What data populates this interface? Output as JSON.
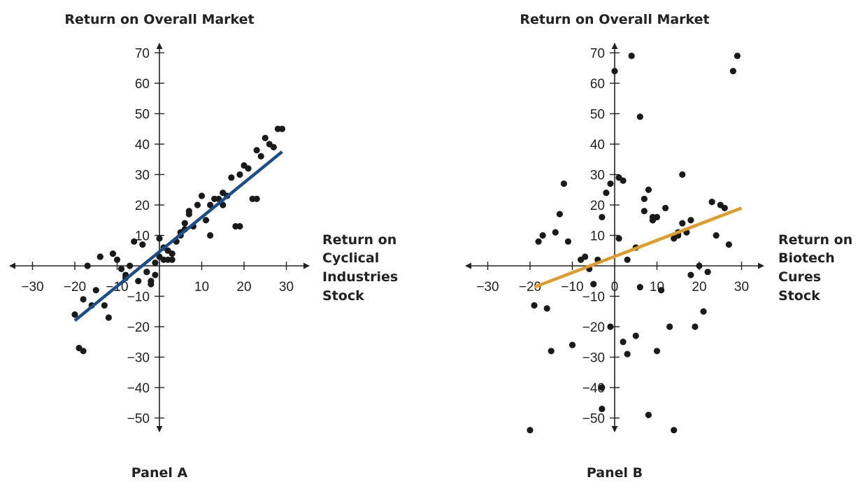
{
  "chart_data": [
    {
      "type": "scatter",
      "panel_label": "Panel A",
      "title": "Return on Overall Market",
      "xlabel": [
        "Return on",
        "Cyclical",
        "Industries",
        "Stock"
      ],
      "ylabel": "",
      "xlim": [
        -30,
        30
      ],
      "ylim": [
        -50,
        70
      ],
      "x_ticks": [
        -30,
        -20,
        -10,
        10,
        20,
        30
      ],
      "y_ticks": [
        -50,
        -40,
        -30,
        -20,
        -10,
        10,
        20,
        30,
        40,
        50,
        60,
        70
      ],
      "x_tick_labels": [
        "−30",
        "−20",
        "−10",
        "10",
        "20",
        "30"
      ],
      "y_tick_labels": [
        "−50",
        "−40",
        "−30",
        "−20",
        "−10",
        "10",
        "20",
        "30",
        "40",
        "50",
        "60",
        "70"
      ],
      "grid": false,
      "fit_line": {
        "color": "#1b4f8a",
        "x": [
          -20,
          29
        ],
        "y": [
          -18,
          37.5
        ]
      },
      "points": {
        "x": [
          -20,
          -19,
          -18,
          -17,
          -16,
          -15,
          -14,
          -13,
          -12,
          -11,
          -10,
          -9,
          -8,
          -7,
          -6,
          -5,
          -4,
          -3,
          -2,
          -1,
          0,
          1,
          2,
          3,
          4,
          5,
          6,
          7,
          8,
          9,
          10,
          11,
          12,
          13,
          14,
          15,
          16,
          17,
          18,
          19,
          20,
          21,
          22,
          23,
          24,
          25,
          26,
          27,
          28,
          29,
          -18,
          -14,
          -8,
          -3,
          -2,
          -1,
          0,
          1,
          2,
          3,
          5,
          6,
          7,
          12,
          15,
          19,
          23
        ],
        "y": [
          -16,
          -27,
          -11,
          0,
          -13,
          -8,
          3,
          -13,
          -17,
          4,
          2,
          -1,
          -4,
          0,
          8,
          -5,
          7,
          -2,
          -5,
          1,
          9,
          2,
          5,
          2,
          8,
          11,
          14,
          18,
          13,
          20,
          23,
          15,
          20,
          22,
          22,
          24,
          23,
          29,
          13,
          30,
          33,
          32,
          22,
          38,
          36,
          42,
          40,
          39,
          45,
          45,
          -28,
          3,
          -3,
          -2,
          -6,
          -3,
          3,
          6,
          2,
          4,
          10,
          12,
          17,
          10,
          20,
          13,
          22
        ]
      }
    },
    {
      "type": "scatter",
      "panel_label": "Panel B",
      "title": "Return on Overall Market",
      "xlabel": [
        "Return on",
        "Biotech",
        "Cures",
        "Stock"
      ],
      "ylabel": "",
      "xlim": [
        -30,
        30
      ],
      "ylim": [
        -50,
        70
      ],
      "x_ticks": [
        -30,
        -20,
        -10,
        0,
        10,
        20,
        30
      ],
      "y_ticks": [
        -50,
        -40,
        -30,
        -20,
        -10,
        10,
        20,
        30,
        40,
        50,
        60,
        70
      ],
      "x_tick_labels": [
        "−30",
        "−20",
        "−10",
        "0",
        "10",
        "20",
        "30"
      ],
      "y_tick_labels": [
        "−50",
        "−40",
        "−30",
        "−20",
        "−10",
        "10",
        "20",
        "30",
        "40",
        "50",
        "60",
        "70"
      ],
      "grid": false,
      "fit_line": {
        "color": "#e09b2d",
        "x": [
          -19,
          30
        ],
        "y": [
          -7,
          19
        ]
      },
      "points": {
        "x": [
          -20,
          -19,
          -18,
          -17,
          -16,
          -15,
          -14,
          -13,
          -12,
          -11,
          -10,
          -8,
          -7,
          -6,
          -5,
          -4,
          -3,
          -2,
          -1,
          0,
          1,
          2,
          3,
          4,
          5,
          6,
          7,
          8,
          9,
          10,
          11,
          12,
          13,
          14,
          15,
          16,
          17,
          18,
          19,
          20,
          21,
          22,
          23,
          24,
          25,
          26,
          27,
          28,
          29,
          -3,
          -3,
          -1,
          1,
          2,
          3,
          5,
          6,
          7,
          8,
          9,
          9,
          10,
          11,
          14,
          15,
          16,
          18
        ],
        "y": [
          -54,
          -13,
          8,
          10,
          -14,
          -28,
          11,
          17,
          27,
          8,
          -26,
          2,
          3,
          -1,
          -6,
          2,
          16,
          24,
          27,
          64,
          29,
          28,
          2,
          69,
          6,
          49,
          22,
          25,
          15,
          -28,
          -8,
          19,
          -20,
          -54,
          10,
          30,
          11,
          15,
          -20,
          0,
          -15,
          -2,
          21,
          10,
          20,
          19,
          7,
          64,
          69,
          -47,
          -40,
          -20,
          9,
          -25,
          -29,
          -23,
          -7,
          18,
          -49,
          15,
          16,
          16,
          -8,
          9,
          11,
          14,
          -3
        ]
      }
    }
  ]
}
